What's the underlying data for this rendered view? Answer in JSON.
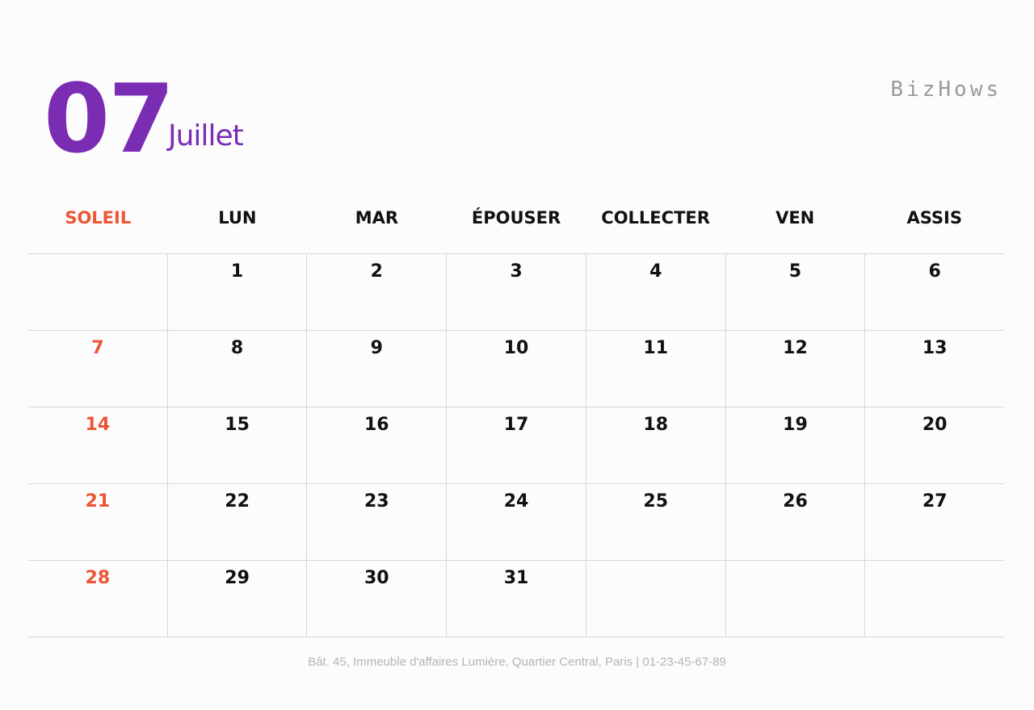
{
  "header": {
    "month_number": "07",
    "month_name": "Juillet",
    "brand": "BizHows"
  },
  "weekdays": [
    "SOLEIL",
    "LUN",
    "MAR",
    "ÉPOUSER",
    "COLLECTER",
    "VEN",
    "ASSIS"
  ],
  "weeks": [
    [
      "",
      "1",
      "2",
      "3",
      "4",
      "5",
      "6"
    ],
    [
      "7",
      "8",
      "9",
      "10",
      "11",
      "12",
      "13"
    ],
    [
      "14",
      "15",
      "16",
      "17",
      "18",
      "19",
      "20"
    ],
    [
      "21",
      "22",
      "23",
      "24",
      "25",
      "26",
      "27"
    ],
    [
      "28",
      "29",
      "30",
      "31",
      "",
      "",
      ""
    ]
  ],
  "footer": {
    "address": "Bât. 45, Immeuble d'affaires Lumière, Quartier Central, Paris | 01-23-45-67-89"
  },
  "colors": {
    "accent": "#7a2db3",
    "sunday": "#ec5536",
    "grid": "#d8d4dc",
    "footer_text": "#b3b3b8"
  }
}
